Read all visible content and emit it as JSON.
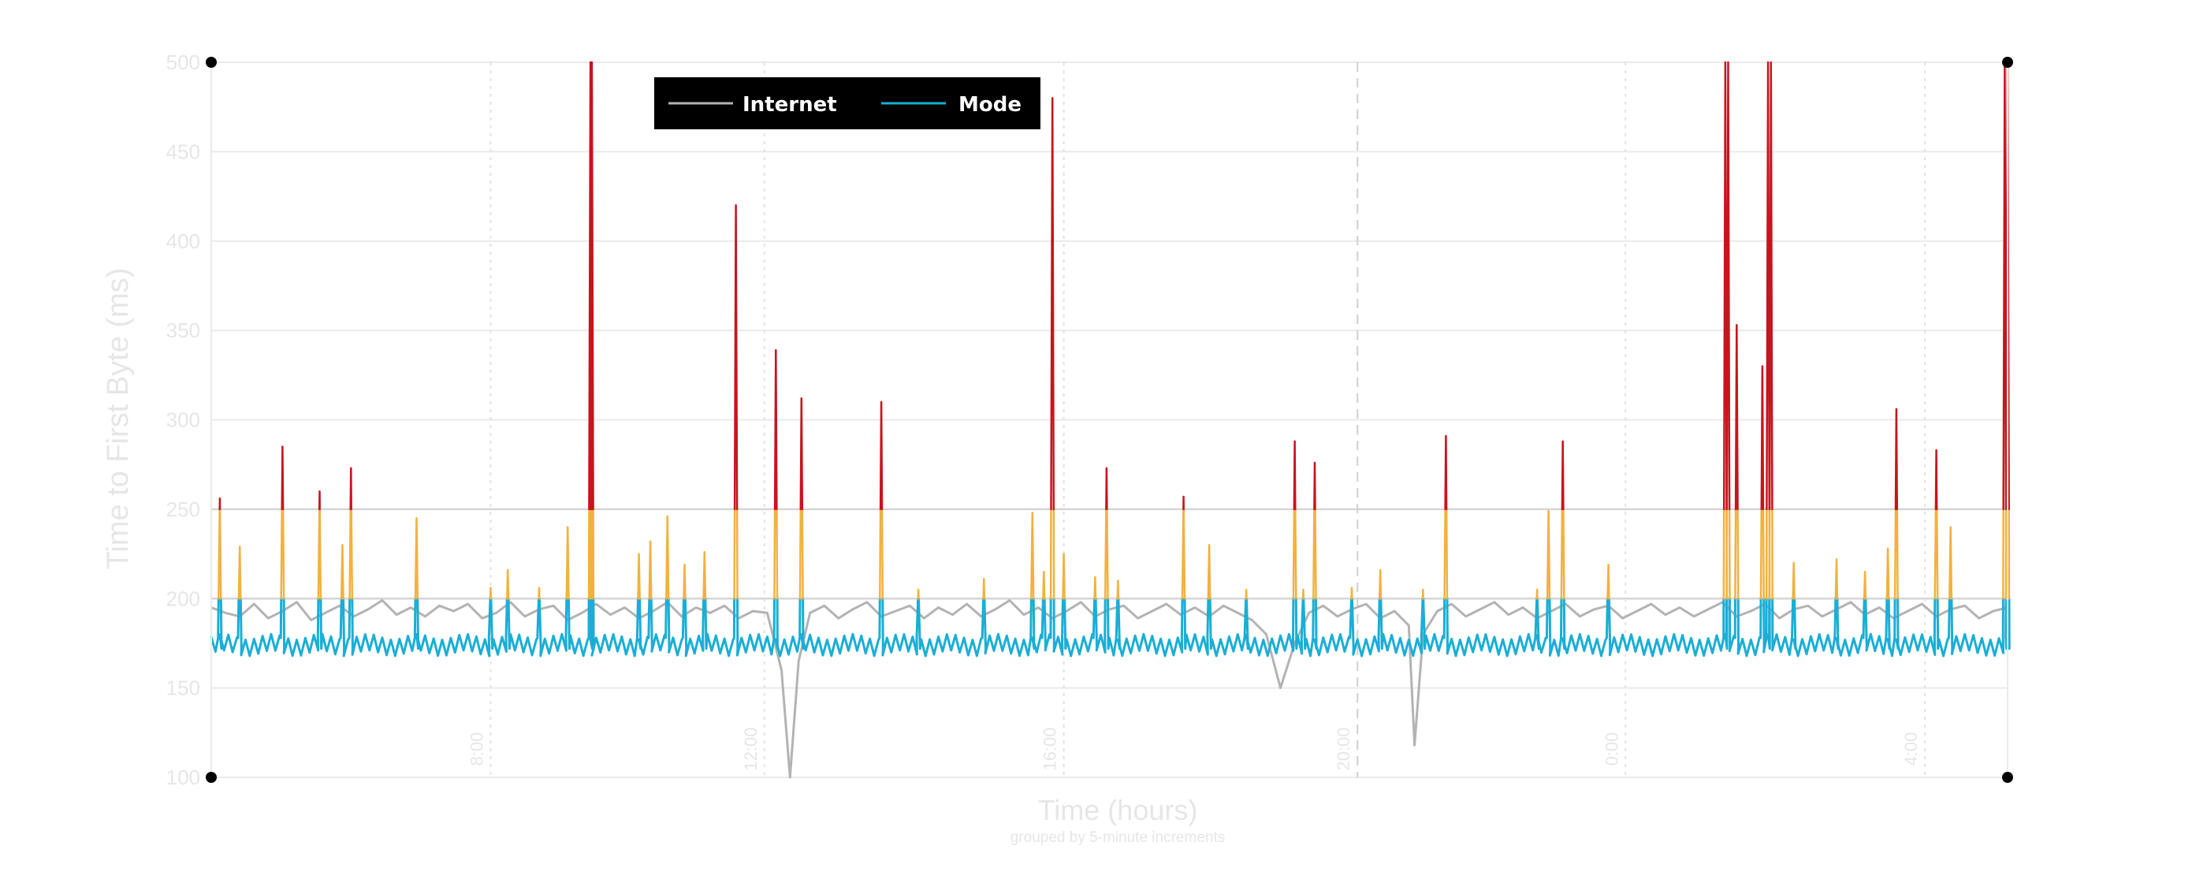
{
  "chart_data": {
    "type": "line",
    "title": "",
    "xlabel": "Time (hours)",
    "xlabel_note": "grouped by 5-minute increments",
    "ylabel": "Time to First Byte (ms)",
    "ylim": [
      100,
      500
    ],
    "yticks": [
      100,
      150,
      200,
      250,
      300,
      350,
      400,
      450,
      500
    ],
    "xlim": [
      0,
      630
    ],
    "x_unit": "5-minute increments",
    "xticks": [
      {
        "x": 98,
        "label": "8:00"
      },
      {
        "x": 194,
        "label": "12:00"
      },
      {
        "x": 299,
        "label": "16:00"
      },
      {
        "x": 402,
        "label": "20:00"
      },
      {
        "x": 496,
        "label": "0:00"
      },
      {
        "x": 601,
        "label": "4:00"
      }
    ],
    "grid": true,
    "threshold_lines": [
      200,
      250
    ],
    "legend": {
      "placement": "top-left",
      "entries": [
        {
          "label": "Internet",
          "color": "#b3b3b3"
        },
        {
          "label": "Mode",
          "color": "#1aaed6"
        }
      ]
    },
    "colors": {
      "internet": "#b3b3b3",
      "mode_normal": "#1aaed6",
      "mode_warning": "#f2b13e",
      "mode_critical": "#c8141e",
      "legend_background": "#000000"
    },
    "series": [
      {
        "name": "Internet",
        "points": [
          [
            0,
            195
          ],
          [
            5,
            192
          ],
          [
            10,
            190
          ],
          [
            15,
            197
          ],
          [
            20,
            189
          ],
          [
            25,
            193
          ],
          [
            30,
            198
          ],
          [
            35,
            188
          ],
          [
            40,
            192
          ],
          [
            45,
            196
          ],
          [
            50,
            190
          ],
          [
            55,
            194
          ],
          [
            60,
            199
          ],
          [
            65,
            191
          ],
          [
            70,
            195
          ],
          [
            75,
            190
          ],
          [
            80,
            196
          ],
          [
            85,
            193
          ],
          [
            90,
            197
          ],
          [
            95,
            189
          ],
          [
            100,
            192
          ],
          [
            105,
            198
          ],
          [
            110,
            190
          ],
          [
            115,
            194
          ],
          [
            120,
            196
          ],
          [
            125,
            188
          ],
          [
            130,
            192
          ],
          [
            135,
            197
          ],
          [
            140,
            191
          ],
          [
            145,
            195
          ],
          [
            150,
            189
          ],
          [
            155,
            193
          ],
          [
            160,
            198
          ],
          [
            165,
            190
          ],
          [
            170,
            195
          ],
          [
            175,
            192
          ],
          [
            180,
            196
          ],
          [
            185,
            189
          ],
          [
            190,
            193
          ],
          [
            195,
            192
          ],
          [
            200,
            160
          ],
          [
            203,
            100
          ],
          [
            206,
            165
          ],
          [
            210,
            192
          ],
          [
            215,
            196
          ],
          [
            220,
            189
          ],
          [
            225,
            194
          ],
          [
            230,
            198
          ],
          [
            235,
            190
          ],
          [
            240,
            193
          ],
          [
            245,
            196
          ],
          [
            250,
            189
          ],
          [
            255,
            195
          ],
          [
            260,
            191
          ],
          [
            265,
            197
          ],
          [
            270,
            190
          ],
          [
            275,
            194
          ],
          [
            280,
            199
          ],
          [
            285,
            191
          ],
          [
            290,
            195
          ],
          [
            295,
            189
          ],
          [
            300,
            193
          ],
          [
            305,
            198
          ],
          [
            310,
            190
          ],
          [
            315,
            194
          ],
          [
            320,
            196
          ],
          [
            325,
            189
          ],
          [
            330,
            193
          ],
          [
            335,
            197
          ],
          [
            340,
            191
          ],
          [
            345,
            195
          ],
          [
            350,
            190
          ],
          [
            355,
            196
          ],
          [
            360,
            192
          ],
          [
            365,
            188
          ],
          [
            370,
            180
          ],
          [
            375,
            150
          ],
          [
            380,
            175
          ],
          [
            385,
            192
          ],
          [
            390,
            196
          ],
          [
            395,
            190
          ],
          [
            400,
            194
          ],
          [
            405,
            197
          ],
          [
            410,
            189
          ],
          [
            415,
            193
          ],
          [
            420,
            185
          ],
          [
            422,
            118
          ],
          [
            425,
            180
          ],
          [
            430,
            193
          ],
          [
            435,
            197
          ],
          [
            440,
            190
          ],
          [
            445,
            194
          ],
          [
            450,
            198
          ],
          [
            455,
            191
          ],
          [
            460,
            195
          ],
          [
            465,
            189
          ],
          [
            470,
            193
          ],
          [
            475,
            197
          ],
          [
            480,
            190
          ],
          [
            485,
            194
          ],
          [
            490,
            196
          ],
          [
            495,
            189
          ],
          [
            500,
            193
          ],
          [
            505,
            197
          ],
          [
            510,
            191
          ],
          [
            515,
            195
          ],
          [
            520,
            190
          ],
          [
            525,
            194
          ],
          [
            530,
            198
          ],
          [
            535,
            190
          ],
          [
            540,
            193
          ],
          [
            545,
            197
          ],
          [
            550,
            189
          ],
          [
            555,
            194
          ],
          [
            560,
            196
          ],
          [
            565,
            190
          ],
          [
            570,
            194
          ],
          [
            575,
            198
          ],
          [
            580,
            191
          ],
          [
            585,
            195
          ],
          [
            590,
            189
          ],
          [
            595,
            193
          ],
          [
            600,
            197
          ],
          [
            605,
            190
          ],
          [
            610,
            194
          ],
          [
            615,
            196
          ],
          [
            620,
            189
          ],
          [
            625,
            193
          ],
          [
            630,
            195
          ]
        ]
      },
      {
        "name": "Mode",
        "spikes": [
          [
            3,
            256
          ],
          [
            10,
            229
          ],
          [
            25,
            285
          ],
          [
            38,
            260
          ],
          [
            46,
            230
          ],
          [
            49,
            273
          ],
          [
            72,
            245
          ],
          [
            98,
            206
          ],
          [
            104,
            216
          ],
          [
            115,
            206
          ],
          [
            125,
            240
          ],
          [
            133,
            500
          ],
          [
            133.5,
            500
          ],
          [
            150,
            225
          ],
          [
            154,
            232
          ],
          [
            160,
            246
          ],
          [
            166,
            219
          ],
          [
            173,
            226
          ],
          [
            184,
            420
          ],
          [
            198,
            339
          ],
          [
            207,
            312
          ],
          [
            235,
            310
          ],
          [
            248,
            205
          ],
          [
            271,
            211
          ],
          [
            288,
            248
          ],
          [
            292,
            215
          ],
          [
            295,
            480
          ],
          [
            299,
            225
          ],
          [
            310,
            212
          ],
          [
            314,
            273
          ],
          [
            318,
            210
          ],
          [
            341,
            257
          ],
          [
            350,
            230
          ],
          [
            363,
            205
          ],
          [
            380,
            288
          ],
          [
            383,
            205
          ],
          [
            387,
            276
          ],
          [
            400,
            206
          ],
          [
            410,
            216
          ],
          [
            425,
            205
          ],
          [
            433,
            291
          ],
          [
            465,
            205
          ],
          [
            469,
            249
          ],
          [
            474,
            288
          ],
          [
            490,
            219
          ],
          [
            531,
            500
          ],
          [
            532,
            500
          ],
          [
            535,
            353
          ],
          [
            544,
            330
          ],
          [
            546,
            500
          ],
          [
            547,
            500
          ],
          [
            555,
            220
          ],
          [
            570,
            222
          ],
          [
            580,
            215
          ],
          [
            588,
            228
          ],
          [
            591,
            306
          ],
          [
            605,
            283
          ],
          [
            610,
            240
          ],
          [
            629,
            500
          ],
          [
            630,
            500
          ]
        ]
      }
    ]
  }
}
